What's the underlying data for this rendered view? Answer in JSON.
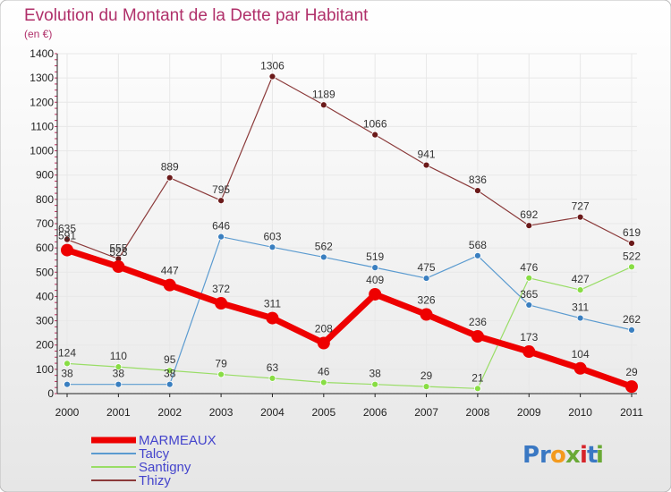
{
  "chart_data": {
    "type": "line",
    "title": "Evolution du Montant de la Dette par Habitant",
    "subtitle": "(en €)",
    "xlabel": "",
    "ylabel": "",
    "ylim": [
      0,
      1400
    ],
    "y_ticks": [
      "0",
      "100",
      "200",
      "300",
      "400",
      "500",
      "600",
      "700",
      "800",
      "900",
      "1000",
      "1100",
      "1200",
      "1300",
      "1400"
    ],
    "grid": true,
    "legend_position": "bottom-left",
    "categories": [
      "2000",
      "2001",
      "2002",
      "2003",
      "2004",
      "2005",
      "2006",
      "2007",
      "2008",
      "2009",
      "2010",
      "2011"
    ],
    "series": [
      {
        "name": "Thizy",
        "color": "#8b3a3a",
        "values": [
          635,
          555,
          889,
          795,
          1306,
          1189,
          1066,
          941,
          836,
          692,
          727,
          619
        ]
      },
      {
        "name": "Talcy",
        "color": "#5b9bd0",
        "values": [
          38,
          38,
          38,
          646,
          603,
          562,
          519,
          475,
          568,
          365,
          311,
          262
        ]
      },
      {
        "name": "Santigny",
        "color": "#99dd66",
        "values": [
          124,
          110,
          95,
          79,
          63,
          46,
          38,
          29,
          21,
          476,
          427,
          522
        ]
      },
      {
        "name": "MARMEAUX",
        "color": "#ee0000",
        "values": [
          591,
          523,
          447,
          372,
          311,
          208,
          409,
          326,
          236,
          173,
          104,
          29
        ]
      }
    ],
    "data_labels": {
      "Thizy": [
        "635",
        "555",
        "889",
        "795",
        "1306",
        "1189",
        "1066",
        "941",
        "836",
        "692",
        "727",
        "619"
      ],
      "Talcy": [
        "38",
        "38",
        "38",
        "646",
        "603",
        "562",
        "519",
        "475",
        "568",
        "365",
        "311",
        "262"
      ],
      "Santigny": [
        "124",
        "110",
        "95",
        "79",
        "63",
        "46",
        "38",
        "29",
        "21",
        "476",
        "427",
        "522"
      ],
      "MARMEAUX": [
        "591",
        "523",
        "447",
        "372",
        "311",
        "208",
        "409",
        "326",
        "236",
        "173",
        "104",
        "29"
      ]
    },
    "legend": [
      "MARMEAUX",
      "Talcy",
      "Santigny",
      "Thizy"
    ]
  },
  "logo": {
    "text": "Proxiti",
    "letters": [
      "P",
      "r",
      "o",
      "x",
      "i",
      "t",
      "i"
    ],
    "colors": [
      "#3a78c3",
      "#3a78c3",
      "#f39a1e",
      "#6aa936",
      "#d6242a",
      "#3a78c3",
      "#6aa936"
    ]
  },
  "colors": {
    "title": "#b0306a",
    "grid": "#e8e8e8",
    "background_top": "#ffffff",
    "background_bottom": "#e8e8e8",
    "axis": "#222222",
    "legend_text": "#4444cc"
  }
}
